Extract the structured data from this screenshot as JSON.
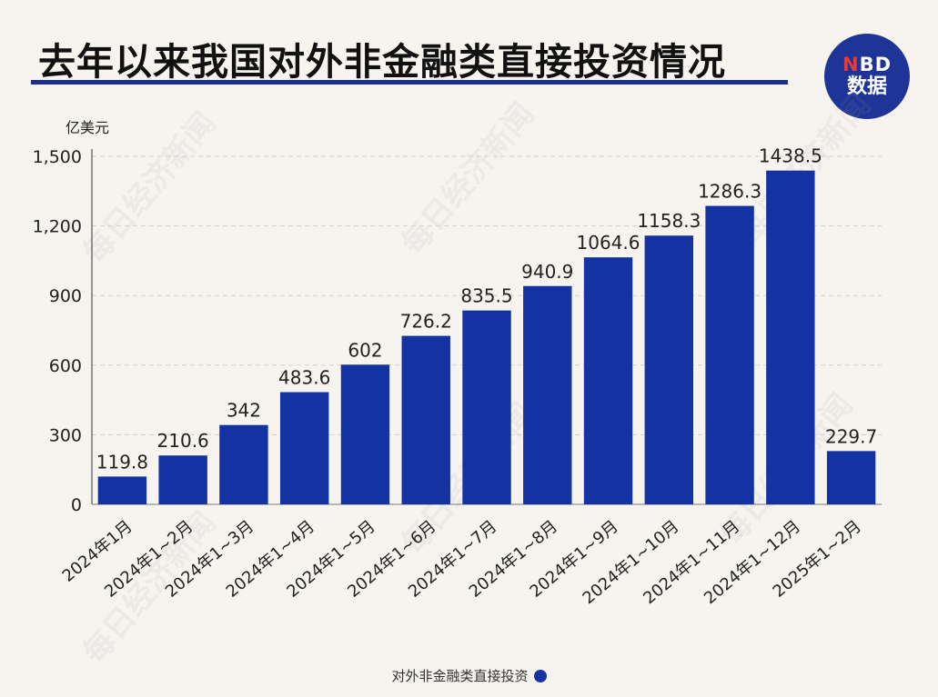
{
  "title": "去年以来我国对外非金融类直接投资情况",
  "logo": {
    "line1_n": "N",
    "line1_rest": "BD",
    "line2": "数据"
  },
  "watermark": "每日经济新闻",
  "source_label": "对外非金融类直接投资",
  "colors": {
    "bar": "#1233a1",
    "title_underline": "#1c2f8a",
    "logo_bg": "#1e3496"
  },
  "chart_data": {
    "type": "bar",
    "unit": "亿美元",
    "categories": [
      "2024年1月",
      "2024年1~2月",
      "2024年1~3月",
      "2024年1~4月",
      "2024年1~5月",
      "2024年1~6月",
      "2024年1~7月",
      "2024年1~8月",
      "2024年1~9月",
      "2024年1~10月",
      "2024年1~11月",
      "2024年1~12月",
      "2025年1~2月"
    ],
    "values": [
      119.8,
      210.6,
      342,
      483.6,
      602,
      726.2,
      835.5,
      940.9,
      1064.6,
      1158.3,
      1286.3,
      1438.5,
      229.7
    ],
    "value_labels": [
      "119.8",
      "210.6",
      "342",
      "483.6",
      "602",
      "726.2",
      "835.5",
      "940.9",
      "1064.6",
      "1158.3",
      "1286.3",
      "1438.5",
      "229.7"
    ],
    "yticks": [
      0,
      300,
      600,
      900,
      1200,
      1500
    ],
    "ytick_labels": [
      "0",
      "300",
      "600",
      "900",
      "1,200",
      "1,500"
    ],
    "ylim": [
      0,
      1500
    ],
    "grid": true,
    "legend": "bottom-center"
  }
}
